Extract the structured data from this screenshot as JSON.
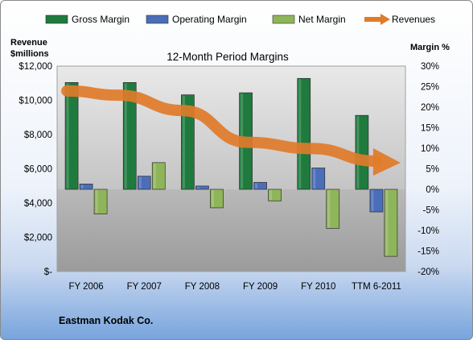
{
  "chart_data": {
    "type": "bar",
    "title": "12-Month Period Margins",
    "company": "Eastman Kodak Co.",
    "categories": [
      "FY 2006",
      "FY 2007",
      "FY 2008",
      "FY 2009",
      "FY 2010",
      "TTM 6-2011"
    ],
    "left_axis": {
      "label_line1": "Revenue",
      "label_line2": "$millions",
      "range": [
        0,
        12000
      ],
      "ticks": [
        0,
        2000,
        4000,
        6000,
        8000,
        10000,
        12000
      ],
      "tick_labels": [
        "$-",
        "$2,000",
        "$4,000",
        "$6,000",
        "$8,000",
        "$10,000",
        "$12,000"
      ]
    },
    "right_axis": {
      "label": "Margin %",
      "range": [
        -20,
        30
      ],
      "ticks": [
        -20,
        -15,
        -10,
        -5,
        0,
        5,
        10,
        15,
        20,
        25,
        30
      ],
      "tick_labels": [
        "-20%",
        "-15%",
        "-10%",
        "-5%",
        "0%",
        "5%",
        "10%",
        "15%",
        "20%",
        "25%",
        "30%"
      ]
    },
    "series": [
      {
        "name": "Gross Margin",
        "kind": "bar",
        "axis": "right",
        "color": "#1f7a3e",
        "values": [
          26,
          26,
          23,
          23.5,
          27,
          18
        ]
      },
      {
        "name": "Operating Margin",
        "kind": "bar",
        "axis": "right",
        "color": "#4a6eb8",
        "values": [
          1.3,
          3.2,
          0.8,
          1.7,
          5.2,
          -5.5
        ]
      },
      {
        "name": "Net Margin",
        "kind": "bar",
        "axis": "right",
        "color": "#8fb55a",
        "values": [
          -6,
          6.5,
          -4.5,
          -2.8,
          -9.5,
          -16.3
        ]
      },
      {
        "name": "Revenues",
        "kind": "arrow-line",
        "axis": "left",
        "color": "#e07b2a",
        "values": [
          10550,
          10300,
          9400,
          7550,
          7180,
          6450
        ]
      }
    ],
    "grid": false,
    "legend_position": "top"
  }
}
